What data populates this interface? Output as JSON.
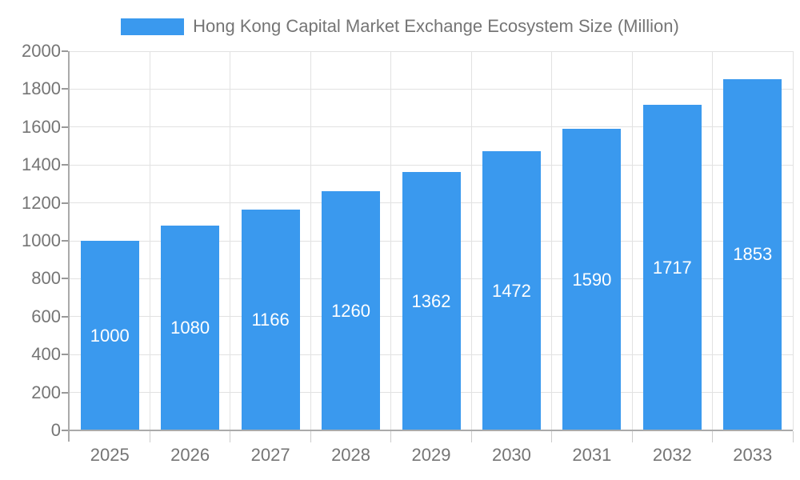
{
  "chart_data": {
    "type": "bar",
    "title": "Hong Kong Capital Market Exchange Ecosystem Size (Million)",
    "legend": [
      "Hong Kong Capital Market Exchange Ecosystem Size (Million)"
    ],
    "legend_position": "top",
    "categories": [
      "2025",
      "2026",
      "2027",
      "2028",
      "2029",
      "2030",
      "2031",
      "2032",
      "2033"
    ],
    "values": [
      1000,
      1080,
      1166,
      1260,
      1362,
      1472,
      1590,
      1717,
      1853
    ],
    "bar_labels": [
      "1000",
      "1080",
      "1166",
      "1260",
      "1362",
      "1472",
      "1590",
      "1717",
      "1853"
    ],
    "xlabel": "",
    "ylabel": "",
    "ylim": [
      0,
      2000
    ],
    "ytick_step": 200,
    "grid": true,
    "colors": {
      "bar": "#3A99EE",
      "grid": "#E2E2E2",
      "axis": "#AAAAAA",
      "tick": "#999999",
      "minor_tick": "#CCCCCC",
      "text": "#757575",
      "bar_label": "#FFFFFF",
      "background": "#FFFFFF"
    }
  }
}
